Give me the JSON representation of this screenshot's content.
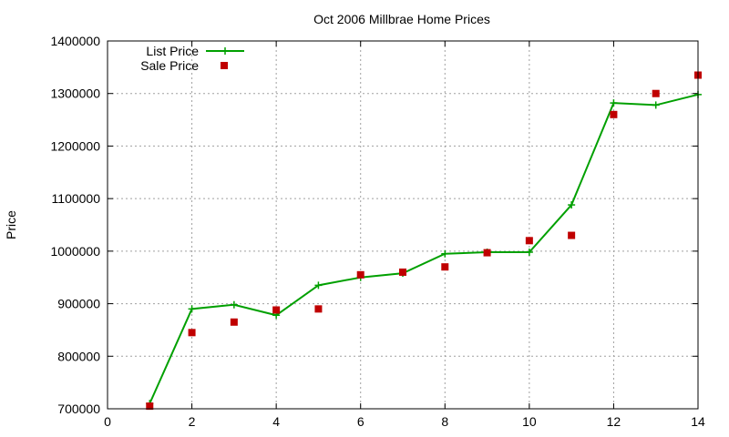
{
  "chart_data": {
    "type": "line",
    "title": "Oct 2006 Millbrae Home Prices",
    "xlabel": "",
    "ylabel": "Price",
    "xlim": [
      0,
      14
    ],
    "ylim": [
      700000,
      1400000
    ],
    "xticks": [
      0,
      2,
      4,
      6,
      8,
      10,
      12,
      14
    ],
    "yticks": [
      700000,
      800000,
      900000,
      1000000,
      1100000,
      1200000,
      1300000,
      1400000
    ],
    "grid": true,
    "legend_position": "top-left",
    "series": [
      {
        "name": "List Price",
        "style": "line-with-plus-markers",
        "color": "#00a000",
        "x": [
          1,
          2,
          3,
          4,
          5,
          6,
          7,
          8,
          9,
          10,
          11,
          12,
          13,
          14
        ],
        "y": [
          710000,
          890000,
          898000,
          878000,
          935000,
          950000,
          958000,
          995000,
          998000,
          998000,
          1088000,
          1282000,
          1278000,
          1298000
        ]
      },
      {
        "name": "Sale Price",
        "style": "square-markers",
        "color": "#c00000",
        "x": [
          1,
          2,
          3,
          4,
          5,
          6,
          7,
          8,
          9,
          10,
          11,
          12,
          13,
          14
        ],
        "y": [
          705000,
          845000,
          865000,
          888000,
          890000,
          955000,
          960000,
          970000,
          997000,
          1020000,
          1030000,
          1260000,
          1300000,
          1335000
        ]
      }
    ]
  }
}
